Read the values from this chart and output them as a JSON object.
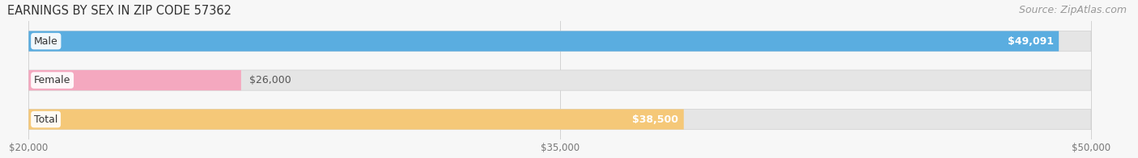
{
  "title": "EARNINGS BY SEX IN ZIP CODE 57362",
  "source": "Source: ZipAtlas.com",
  "categories": [
    "Male",
    "Female",
    "Total"
  ],
  "values": [
    49091,
    26000,
    38500
  ],
  "labels": [
    "$49,091",
    "$26,000",
    "$38,500"
  ],
  "bar_colors": [
    "#5aade0",
    "#f4a8bf",
    "#f5c878"
  ],
  "xmin": 20000,
  "xmax": 50000,
  "xticks": [
    20000,
    35000,
    50000
  ],
  "xtick_labels": [
    "$20,000",
    "$35,000",
    "$50,000"
  ],
  "background_color": "#f7f7f7",
  "bar_bg_color": "#e5e5e5",
  "title_fontsize": 10.5,
  "source_fontsize": 9,
  "label_fontsize": 9,
  "bar_height": 0.52,
  "bar_gap": 0.18
}
